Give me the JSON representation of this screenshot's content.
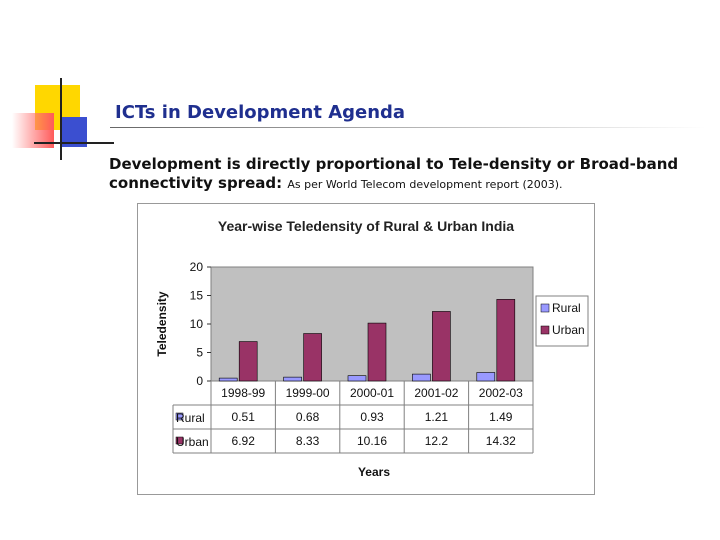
{
  "slide": {
    "title": "ICTs in Development Agenda",
    "body_main": "Development is directly proportional to Tele-density or Broad-band connectivity spread:",
    "body_note": "As per World Telecom development report (2003)."
  },
  "colors": {
    "rural": "#9999ff",
    "urban": "#993366",
    "plot_bg": "#c0c0c0",
    "title_text": "#1f2f8f"
  },
  "chart_data": {
    "type": "bar",
    "title": "Year-wise Teledensity of Rural & Urban India",
    "xlabel": "Years",
    "ylabel": "Teledensity",
    "categories": [
      "1998-99",
      "1999-00",
      "2000-01",
      "2001-02",
      "2002-03"
    ],
    "series": [
      {
        "name": "Rural",
        "values": [
          0.51,
          0.68,
          0.93,
          1.21,
          1.49
        ]
      },
      {
        "name": "Urban",
        "values": [
          6.92,
          8.33,
          10.16,
          12.2,
          14.32
        ]
      }
    ],
    "ylim": [
      0,
      20
    ],
    "yticks": [
      0,
      5,
      10,
      15,
      20
    ],
    "grid": false,
    "legend_position": "right",
    "data_table": true
  }
}
